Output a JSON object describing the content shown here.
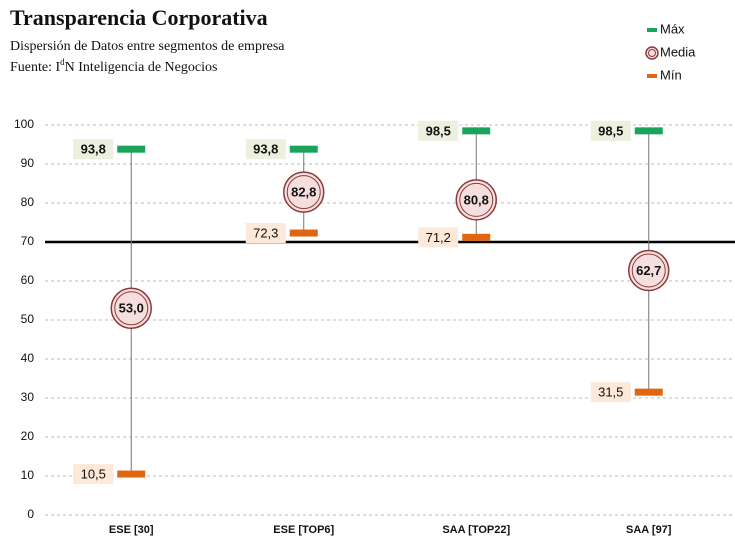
{
  "chart_data": {
    "type": "high-low-mean",
    "title": "Transparencia Corporativa",
    "subtitle": "Dispersión de Datos entre segmentos de empresa",
    "source": [
      "Fuente: I",
      "d",
      "N Inteligencia de Negocios"
    ],
    "categories": [
      "ESE [30]",
      "ESE [TOP6]",
      "SAA [TOP22]",
      "SAA [97]"
    ],
    "series": [
      {
        "name": "Máx",
        "role": "max",
        "color": "#1aa35a",
        "values": [
          93.8,
          93.8,
          98.5,
          98.5
        ],
        "value_labels": [
          "93,8",
          "93,8",
          "98,5",
          "98,5"
        ]
      },
      {
        "name": "Media",
        "role": "mean",
        "color": "#8c3b3b",
        "values": [
          53.0,
          82.8,
          80.8,
          62.7
        ],
        "value_labels": [
          "53,0",
          "82,8",
          "80,8",
          "62,7"
        ]
      },
      {
        "name": "Mín",
        "role": "min",
        "color": "#e0660f",
        "values": [
          10.5,
          72.3,
          71.2,
          31.5
        ],
        "value_labels": [
          "10,5",
          "72,3",
          "71,2",
          "31,5"
        ]
      }
    ],
    "ylim": [
      0,
      100
    ],
    "yticks": [
      0,
      10,
      20,
      30,
      40,
      50,
      60,
      70,
      80,
      90,
      100
    ],
    "reference_line": 70,
    "grid": true,
    "legend": "top-right"
  }
}
